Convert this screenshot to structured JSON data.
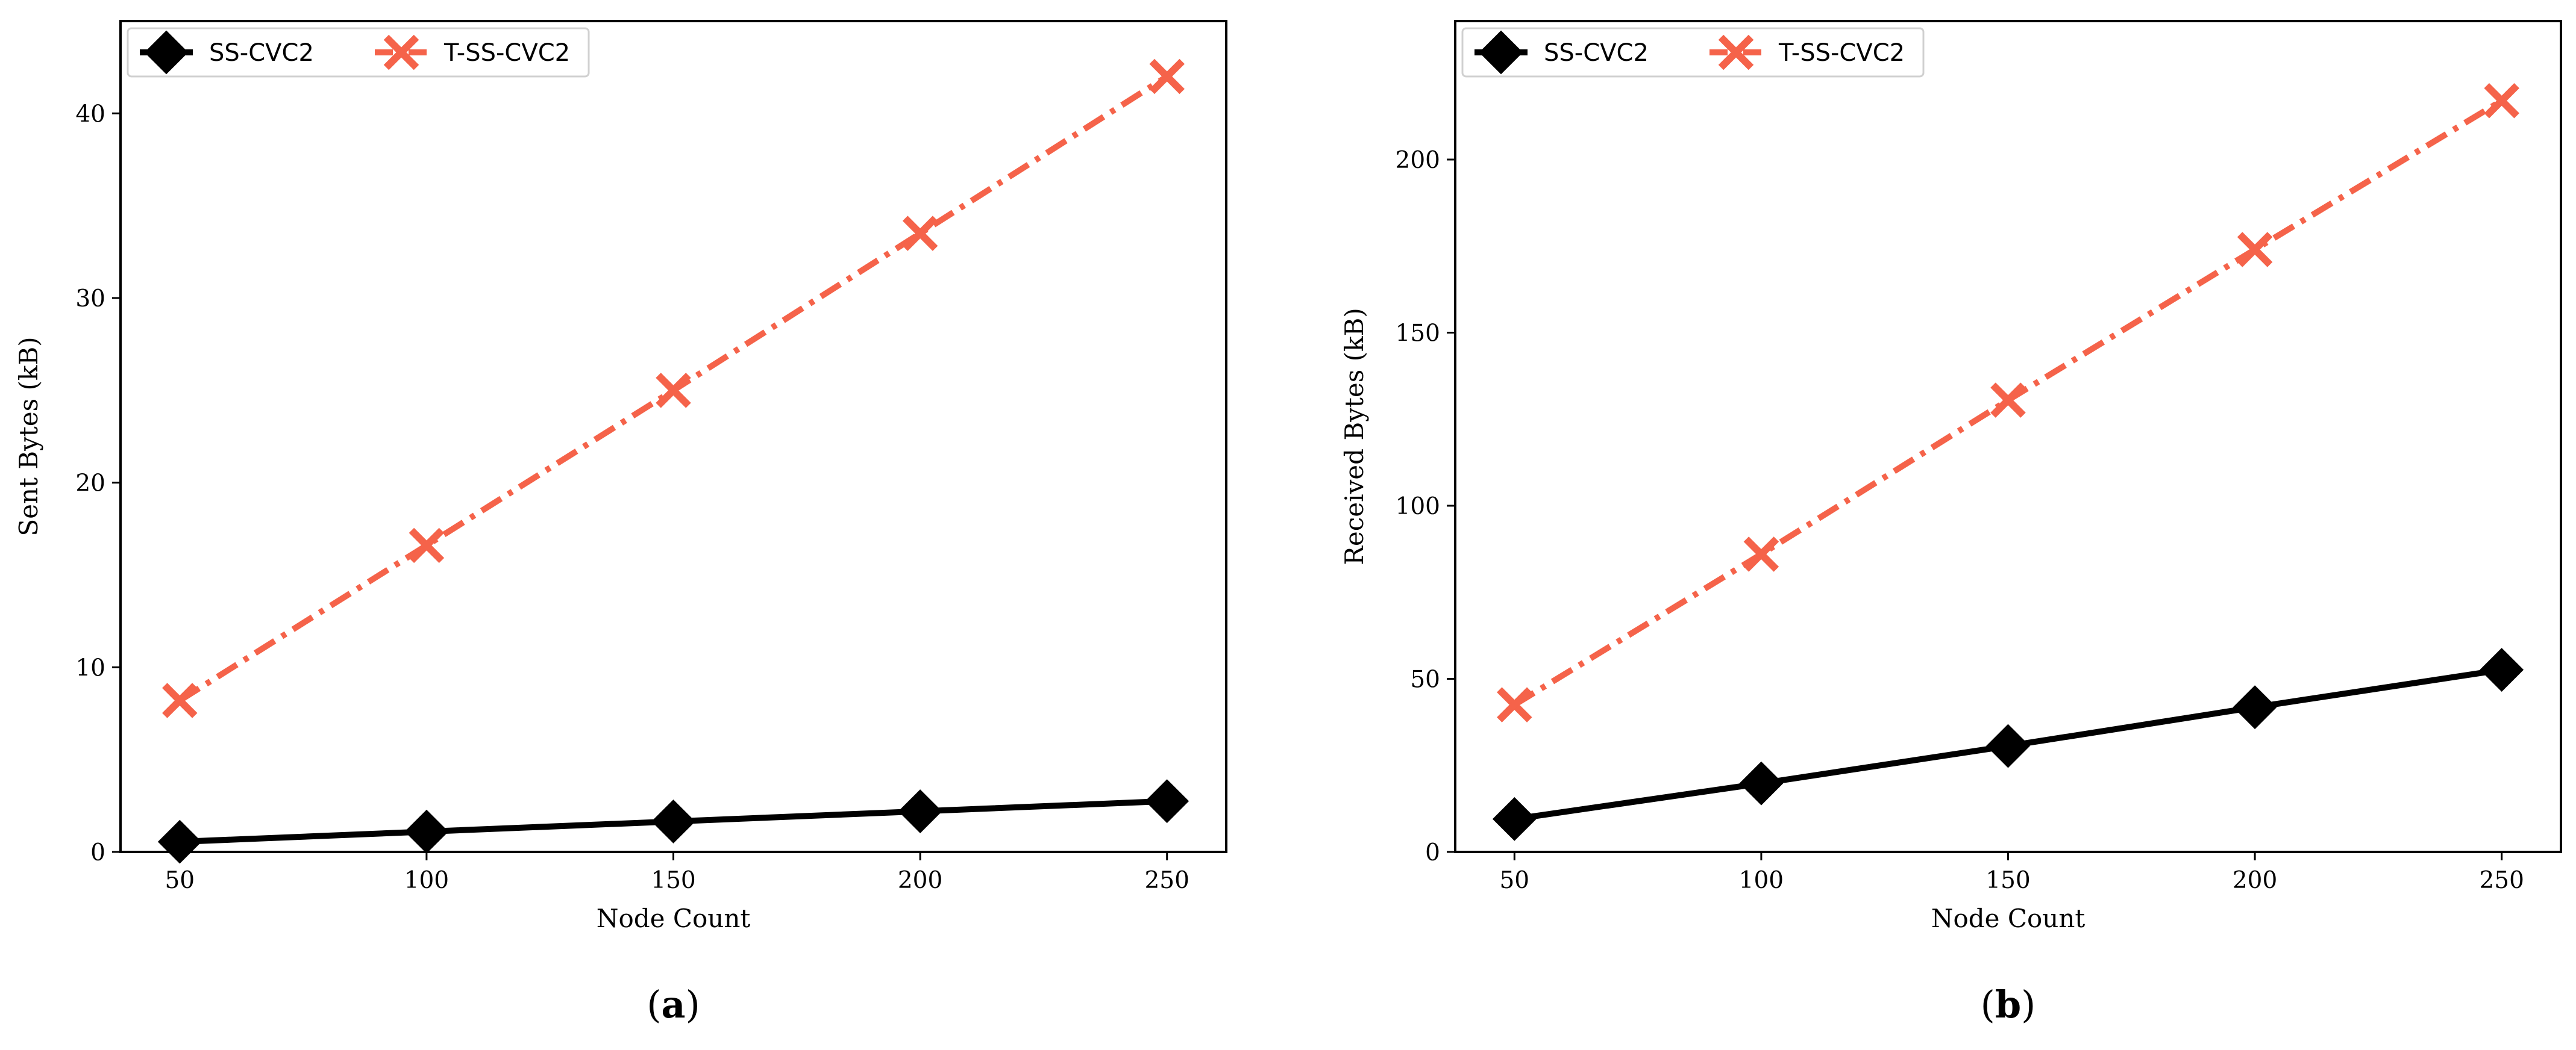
{
  "chart_data": [
    {
      "type": "line",
      "panel_label": "a",
      "xlabel": "Node Count",
      "ylabel": "Sent Bytes (kB)",
      "x": [
        50,
        100,
        150,
        200,
        250
      ],
      "xlim": [
        38,
        262
      ],
      "ylim": [
        0,
        45
      ],
      "xticks": [
        50,
        100,
        150,
        200,
        250
      ],
      "yticks": [
        0,
        10,
        20,
        30,
        40
      ],
      "grid": false,
      "legend_position": "top-left",
      "series": [
        {
          "name": "SS-CVC2",
          "values": [
            0.55,
            1.1,
            1.65,
            2.2,
            2.75
          ],
          "color": "#000000",
          "marker": "diamond",
          "line_style": "solid"
        },
        {
          "name": "T-SS-CVC2",
          "values": [
            8.2,
            16.6,
            25.0,
            33.5,
            42.0
          ],
          "color": "#f5634a",
          "marker": "x",
          "line_style": "dashdot"
        }
      ]
    },
    {
      "type": "line",
      "panel_label": "b",
      "xlabel": "Node Count",
      "ylabel": "Received Bytes (kB)",
      "x": [
        50,
        100,
        150,
        200,
        250
      ],
      "xlim": [
        38,
        262
      ],
      "ylim": [
        0,
        240
      ],
      "xticks": [
        50,
        100,
        150,
        200,
        250
      ],
      "yticks": [
        0,
        50,
        100,
        150,
        200
      ],
      "grid": false,
      "legend_position": "top-left",
      "series": [
        {
          "name": "SS-CVC2",
          "values": [
            9.5,
            19.8,
            30.6,
            41.8,
            52.6
          ],
          "color": "#000000",
          "marker": "diamond",
          "line_style": "solid"
        },
        {
          "name": "T-SS-CVC2",
          "values": [
            42.5,
            86.0,
            130.5,
            174.0,
            217.0
          ],
          "color": "#f5634a",
          "marker": "x",
          "line_style": "dashdot"
        }
      ]
    }
  ]
}
